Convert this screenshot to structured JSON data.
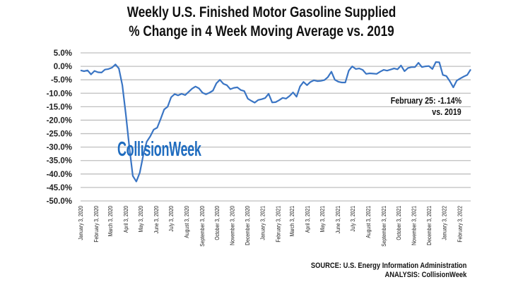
{
  "chart_data": {
    "type": "line",
    "title": "Weekly U.S. Finished Motor Gasoline Supplied",
    "subtitle": "% Change in 4 Week Moving Average vs. 2019",
    "xlabel": "",
    "ylabel": "",
    "ylim": [
      -50,
      5
    ],
    "y_ticks": [
      "5.0%",
      "0.0%",
      "-5.0%",
      "-10.0%",
      "-15.0%",
      "-20.0%",
      "-25.0%",
      "-30.0%",
      "-35.0%",
      "-40.0%",
      "-45.0%",
      "-50.0%"
    ],
    "y_tick_values": [
      5,
      0,
      -5,
      -10,
      -15,
      -20,
      -25,
      -30,
      -35,
      -40,
      -45,
      -50
    ],
    "x_ticks": [
      {
        "date": "2020-01-03",
        "label": "January 3, 2020"
      },
      {
        "date": "2020-02-03",
        "label": "February 3, 2020"
      },
      {
        "date": "2020-03-03",
        "label": "March 3, 2020"
      },
      {
        "date": "2020-04-03",
        "label": "April 3, 2020"
      },
      {
        "date": "2020-05-03",
        "label": "May 3, 2020"
      },
      {
        "date": "2020-06-03",
        "label": "June 3, 2020"
      },
      {
        "date": "2020-07-03",
        "label": "July 3, 2020"
      },
      {
        "date": "2020-08-03",
        "label": "August 3, 2020"
      },
      {
        "date": "2020-09-03",
        "label": "September 3, 2020"
      },
      {
        "date": "2020-10-03",
        "label": "October 3, 2020"
      },
      {
        "date": "2020-11-03",
        "label": "November 3, 2020"
      },
      {
        "date": "2020-12-03",
        "label": "December 3, 2020"
      },
      {
        "date": "2021-01-03",
        "label": "January 3, 2021"
      },
      {
        "date": "2021-02-03",
        "label": "February 3, 2021"
      },
      {
        "date": "2021-03-03",
        "label": "March 3, 2021"
      },
      {
        "date": "2021-04-03",
        "label": "April 3, 2021"
      },
      {
        "date": "2021-05-03",
        "label": "May 3, 2021"
      },
      {
        "date": "2021-06-03",
        "label": "June 3, 2021"
      },
      {
        "date": "2021-07-03",
        "label": "July 3, 2021"
      },
      {
        "date": "2021-08-03",
        "label": "August 3, 2021"
      },
      {
        "date": "2021-09-03",
        "label": "September 3, 2021"
      },
      {
        "date": "2021-10-03",
        "label": "October 3, 2021"
      },
      {
        "date": "2021-11-03",
        "label": "November 3, 2021"
      },
      {
        "date": "2021-12-03",
        "label": "December 3, 2021"
      },
      {
        "date": "2022-01-03",
        "label": "January 3, 2022"
      },
      {
        "date": "2022-02-03",
        "label": "February 3, 2022"
      }
    ],
    "grid": true,
    "legend": "none",
    "line_color": "#3a75c4",
    "series": [
      {
        "x": [
          "2020-01-03",
          "2020-01-10",
          "2020-01-17",
          "2020-01-24",
          "2020-01-31",
          "2020-02-07",
          "2020-02-14",
          "2020-02-21",
          "2020-02-28",
          "2020-03-06",
          "2020-03-13",
          "2020-03-20",
          "2020-03-27",
          "2020-04-03",
          "2020-04-10",
          "2020-04-17",
          "2020-04-24",
          "2020-05-01",
          "2020-05-08",
          "2020-05-15",
          "2020-05-22",
          "2020-05-29",
          "2020-06-05",
          "2020-06-12",
          "2020-06-19",
          "2020-06-26",
          "2020-07-03",
          "2020-07-10",
          "2020-07-17",
          "2020-07-24",
          "2020-07-31",
          "2020-08-07",
          "2020-08-14",
          "2020-08-21",
          "2020-08-28",
          "2020-09-04",
          "2020-09-11",
          "2020-09-18",
          "2020-09-25",
          "2020-10-02",
          "2020-10-09",
          "2020-10-16",
          "2020-10-23",
          "2020-10-30",
          "2020-11-06",
          "2020-11-13",
          "2020-11-20",
          "2020-11-27",
          "2020-12-04",
          "2020-12-11",
          "2020-12-18",
          "2020-12-25",
          "2021-01-01",
          "2021-01-08",
          "2021-01-15",
          "2021-01-22",
          "2021-01-29",
          "2021-02-05",
          "2021-02-12",
          "2021-02-19",
          "2021-02-26",
          "2021-03-05",
          "2021-03-12",
          "2021-03-19",
          "2021-03-26",
          "2021-04-02",
          "2021-04-09",
          "2021-04-16",
          "2021-04-23",
          "2021-04-30",
          "2021-05-07",
          "2021-05-14",
          "2021-05-21",
          "2021-05-28",
          "2021-06-04",
          "2021-06-11",
          "2021-06-18",
          "2021-06-25",
          "2021-07-02",
          "2021-07-09",
          "2021-07-16",
          "2021-07-23",
          "2021-07-30",
          "2021-08-06",
          "2021-08-13",
          "2021-08-20",
          "2021-08-27",
          "2021-09-03",
          "2021-09-10",
          "2021-09-17",
          "2021-09-24",
          "2021-10-01",
          "2021-10-08",
          "2021-10-15",
          "2021-10-22",
          "2021-10-29",
          "2021-11-05",
          "2021-11-12",
          "2021-11-19",
          "2021-11-26",
          "2021-12-03",
          "2021-12-10",
          "2021-12-17",
          "2021-12-24",
          "2021-12-31",
          "2022-01-07",
          "2022-01-14",
          "2022-01-21",
          "2022-01-28",
          "2022-02-04",
          "2022-02-11",
          "2022-02-18",
          "2022-02-25"
        ],
        "values": [
          -1.5,
          -1.8,
          -1.5,
          -3.0,
          -1.7,
          -2.2,
          -2.3,
          -1.2,
          -1.0,
          -0.5,
          0.7,
          -0.8,
          -7,
          -18,
          -30,
          -40.7,
          -42.8,
          -39.5,
          -33,
          -28,
          -26,
          -23.5,
          -22.8,
          -19.5,
          -16,
          -15,
          -11.5,
          -10.3,
          -10.8,
          -10.2,
          -10.7,
          -9.5,
          -8.3,
          -7.5,
          -8.2,
          -9.8,
          -10.4,
          -9.8,
          -9,
          -6.3,
          -5,
          -6.5,
          -7,
          -8.5,
          -8,
          -7.8,
          -8.8,
          -9.2,
          -12,
          -12.8,
          -13.5,
          -12.5,
          -12.2,
          -11.8,
          -10.2,
          -13.4,
          -13.3,
          -12.6,
          -11.7,
          -12,
          -11,
          -9.7,
          -11.3,
          -7.5,
          -5.8,
          -7,
          -5.8,
          -5.2,
          -5.5,
          -5.4,
          -5.1,
          -4,
          -2,
          -5,
          -5.7,
          -6,
          -6,
          -1.6,
          0,
          -1,
          -0.8,
          -1.3,
          -2.8,
          -2.6,
          -2.7,
          -2.8,
          -2,
          -1.3,
          -1.6,
          -1.2,
          -0.8,
          -1.1,
          0.3,
          -1.8,
          -0.6,
          -0.3,
          -0.3,
          1.3,
          -0.3,
          0,
          0.1,
          -1,
          1.6,
          1.5,
          -3.2,
          -3.6,
          -5.5,
          -7.8,
          -5.3,
          -4.5,
          -3.8,
          -3.2,
          -1.14
        ]
      }
    ],
    "annotation": {
      "line1": "February 25: -1.14%",
      "line2": "vs. 2019"
    }
  },
  "watermark": "CollisionWeek",
  "source": "SOURCE: U.S. Energy Information Administration",
  "analysis": "ANALYSIS: CollisionWeek"
}
